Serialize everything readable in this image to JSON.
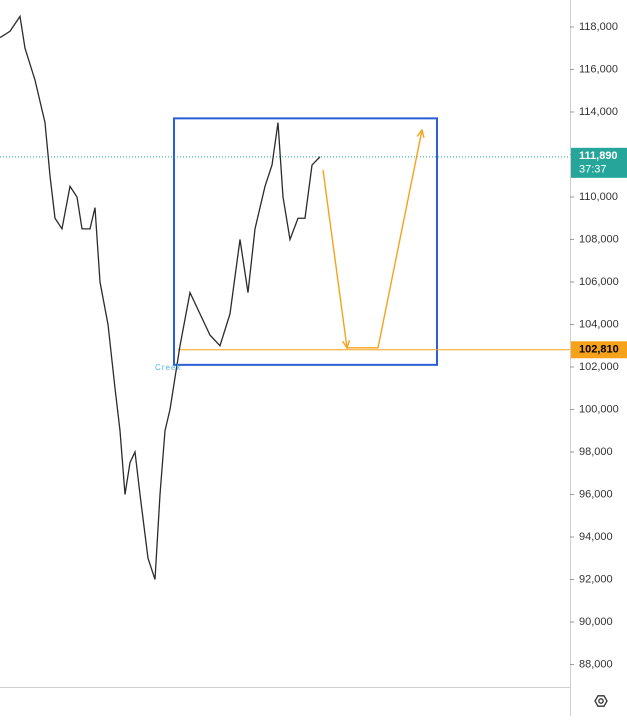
{
  "chart_data": {
    "type": "line",
    "series": [
      {
        "name": null,
        "color": "#2b2b2b",
        "x": [
          0,
          10,
          20,
          25,
          35,
          45,
          50,
          55,
          62,
          70,
          77,
          82,
          90,
          95,
          100,
          108,
          115,
          120,
          125,
          130,
          135,
          140,
          148,
          155,
          160,
          165,
          170,
          175,
          180,
          190,
          200,
          210,
          220,
          230,
          240,
          248,
          255,
          265,
          272,
          278,
          283,
          290,
          298,
          305,
          312,
          320
        ],
        "values": [
          117500,
          117800,
          118500,
          117000,
          115500,
          113500,
          111000,
          109000,
          108500,
          110500,
          110000,
          108500,
          108500,
          109500,
          106000,
          104000,
          101000,
          99000,
          96000,
          97500,
          98000,
          96000,
          93000,
          92000,
          96000,
          99000,
          100000,
          101500,
          103000,
          105500,
          104500,
          103500,
          103000,
          104500,
          108000,
          105500,
          108500,
          110500,
          111500,
          113500,
          110000,
          108000,
          109000,
          109000,
          111500,
          111890
        ]
      }
    ],
    "xlim": [
      0,
      570
    ],
    "ylim": [
      86940,
      119270
    ],
    "yticks": [
      {
        "value": 88000,
        "label": "88,000"
      },
      {
        "value": 90000,
        "label": "90,000"
      },
      {
        "value": 92000,
        "label": "92,000"
      },
      {
        "value": 94000,
        "label": "94,000"
      },
      {
        "value": 96000,
        "label": "96,000"
      },
      {
        "value": 98000,
        "label": "98,000"
      },
      {
        "value": 100000,
        "label": "100,000"
      },
      {
        "value": 102000,
        "label": "102,000"
      },
      {
        "value": 104000,
        "label": "104,000"
      },
      {
        "value": 106000,
        "label": "106,000"
      },
      {
        "value": 108000,
        "label": "108,000"
      },
      {
        "value": 110000,
        "label": "110,000"
      },
      {
        "value": 112000,
        "label": "112,000"
      },
      {
        "value": 114000,
        "label": "114,000"
      },
      {
        "value": 116000,
        "label": "116,000"
      },
      {
        "value": 118000,
        "label": "118,000"
      }
    ],
    "price_labels": [
      {
        "value": 111890,
        "label": "111,890",
        "timer": "37:37",
        "color": "#26a69a",
        "line": "dotted"
      },
      {
        "value": 102810,
        "label": "102,810",
        "color": "#f7a21b",
        "line": "solid",
        "from_x": 178
      }
    ],
    "box": {
      "x": [
        174,
        437
      ],
      "y": [
        113700,
        102100
      ],
      "color": "#2a5fd6"
    },
    "arrows": {
      "color": "#f7a21b",
      "x": [
        323,
        347,
        378,
        422
      ],
      "y": [
        111270,
        102900,
        102900,
        113150
      ]
    },
    "annotation": {
      "text": "Creek",
      "x": 155,
      "y": 101950,
      "color": "#56b4e9"
    }
  }
}
